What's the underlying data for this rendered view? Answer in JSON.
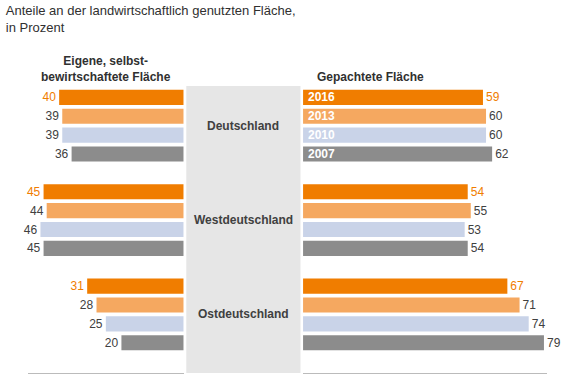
{
  "chart_data": {
    "type": "bar",
    "orientation": "horizontal",
    "title": "Anteile an der landwirtschaftlich genutzten Fläche, in Prozent",
    "data_labels": true,
    "tick_labels": false,
    "legend": false,
    "categories": [
      "2016",
      "2013",
      "2010",
      "2007"
    ],
    "colors": [
      "#f07d00",
      "#f5a860",
      "#c9d3e8",
      "#8c8c8c"
    ],
    "xlim": [
      50,
      0
    ],
    "x2lim": [
      0,
      80
    ],
    "series_names": [
      "Eigene, selbst-bewirtschaftete Fläche",
      "Gepachtete Fläche"
    ],
    "groups": [
      {
        "name": "Deutschland",
        "own": [
          40,
          39,
          39,
          36
        ],
        "leased": [
          59,
          60,
          60,
          62
        ]
      },
      {
        "name": "Westdeutschland",
        "own": [
          45,
          44,
          46,
          45
        ],
        "leased": [
          54,
          55,
          53,
          54
        ]
      },
      {
        "name": "Ostdeutschland",
        "own": [
          31,
          28,
          25,
          20
        ],
        "leased": [
          67,
          71,
          74,
          79
        ]
      }
    ]
  }
}
